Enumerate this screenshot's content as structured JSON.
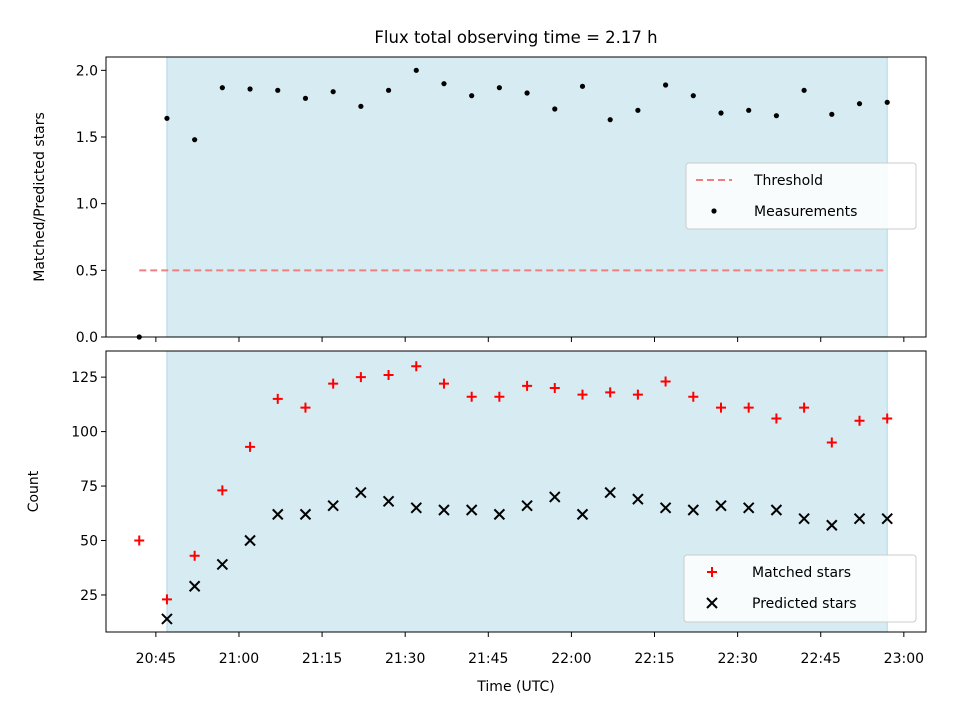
{
  "chart_data": [
    {
      "type": "scatter",
      "title": "Flux total observing time = 2.17 h",
      "ylabel": "Matched/Predicted stars",
      "xlabel": "",
      "xlim": [
        "20:36",
        "23:04"
      ],
      "ylim": [
        0,
        2.1
      ],
      "yticks": [
        "0.0",
        "0.5",
        "1.0",
        "1.5",
        "2.0"
      ],
      "grid": false,
      "legend_position": "center-right",
      "shaded_region": {
        "start": "20:47",
        "end": "22:57",
        "color": "#add8e6"
      },
      "series": [
        {
          "name": "Threshold",
          "style": "dashed-line",
          "color": "#f08080",
          "points": [
            [
              "20:42",
              0.5
            ],
            [
              "22:57",
              0.5
            ]
          ]
        },
        {
          "name": "Measurements",
          "style": "dot",
          "color": "#000000",
          "points": [
            [
              "20:42",
              0.0
            ],
            [
              "20:47",
              1.64
            ],
            [
              "20:52",
              1.48
            ],
            [
              "20:57",
              1.87
            ],
            [
              "21:02",
              1.86
            ],
            [
              "21:07",
              1.85
            ],
            [
              "21:12",
              1.79
            ],
            [
              "21:17",
              1.84
            ],
            [
              "21:22",
              1.73
            ],
            [
              "21:27",
              1.85
            ],
            [
              "21:32",
              2.0
            ],
            [
              "21:37",
              1.9
            ],
            [
              "21:42",
              1.81
            ],
            [
              "21:47",
              1.87
            ],
            [
              "21:52",
              1.83
            ],
            [
              "21:57",
              1.71
            ],
            [
              "22:02",
              1.88
            ],
            [
              "22:07",
              1.63
            ],
            [
              "22:12",
              1.7
            ],
            [
              "22:17",
              1.89
            ],
            [
              "22:22",
              1.81
            ],
            [
              "22:27",
              1.68
            ],
            [
              "22:32",
              1.7
            ],
            [
              "22:37",
              1.66
            ],
            [
              "22:42",
              1.85
            ],
            [
              "22:47",
              1.67
            ],
            [
              "22:52",
              1.75
            ],
            [
              "22:57",
              1.76
            ]
          ]
        }
      ]
    },
    {
      "type": "scatter",
      "title": "",
      "ylabel": "Count",
      "xlabel": "Time (UTC)",
      "xlim": [
        "20:36",
        "23:04"
      ],
      "ylim": [
        8,
        137
      ],
      "yticks": [
        "25",
        "50",
        "75",
        "100",
        "125"
      ],
      "xticks": [
        "20:45",
        "21:00",
        "21:15",
        "21:30",
        "21:45",
        "22:00",
        "22:15",
        "22:30",
        "22:45",
        "23:00"
      ],
      "grid": false,
      "legend_position": "bottom-right",
      "shaded_region": {
        "start": "20:47",
        "end": "22:57",
        "color": "#add8e6"
      },
      "series": [
        {
          "name": "Matched stars",
          "style": "plus",
          "color": "#ff0000",
          "points": [
            [
              "20:42",
              50
            ],
            [
              "20:47",
              23
            ],
            [
              "20:52",
              43
            ],
            [
              "20:57",
              73
            ],
            [
              "21:02",
              93
            ],
            [
              "21:07",
              115
            ],
            [
              "21:12",
              111
            ],
            [
              "21:17",
              122
            ],
            [
              "21:22",
              125
            ],
            [
              "21:27",
              126
            ],
            [
              "21:32",
              130
            ],
            [
              "21:37",
              122
            ],
            [
              "21:42",
              116
            ],
            [
              "21:47",
              116
            ],
            [
              "21:52",
              121
            ],
            [
              "21:57",
              120
            ],
            [
              "22:02",
              117
            ],
            [
              "22:07",
              118
            ],
            [
              "22:12",
              117
            ],
            [
              "22:17",
              123
            ],
            [
              "22:22",
              116
            ],
            [
              "22:27",
              111
            ],
            [
              "22:32",
              111
            ],
            [
              "22:37",
              106
            ],
            [
              "22:42",
              111
            ],
            [
              "22:47",
              95
            ],
            [
              "22:52",
              105
            ],
            [
              "22:57",
              106
            ]
          ]
        },
        {
          "name": "Predicted stars",
          "style": "x",
          "color": "#000000",
          "points": [
            [
              "20:47",
              14
            ],
            [
              "20:52",
              29
            ],
            [
              "20:57",
              39
            ],
            [
              "21:02",
              50
            ],
            [
              "21:07",
              62
            ],
            [
              "21:12",
              62
            ],
            [
              "21:17",
              66
            ],
            [
              "21:22",
              72
            ],
            [
              "21:27",
              68
            ],
            [
              "21:32",
              65
            ],
            [
              "21:37",
              64
            ],
            [
              "21:42",
              64
            ],
            [
              "21:47",
              62
            ],
            [
              "21:52",
              66
            ],
            [
              "21:57",
              70
            ],
            [
              "22:02",
              62
            ],
            [
              "22:07",
              72
            ],
            [
              "22:12",
              69
            ],
            [
              "22:17",
              65
            ],
            [
              "22:22",
              64
            ],
            [
              "22:27",
              66
            ],
            [
              "22:32",
              65
            ],
            [
              "22:37",
              64
            ],
            [
              "22:42",
              60
            ],
            [
              "22:47",
              57
            ],
            [
              "22:52",
              60
            ],
            [
              "22:57",
              60
            ]
          ]
        }
      ]
    }
  ]
}
